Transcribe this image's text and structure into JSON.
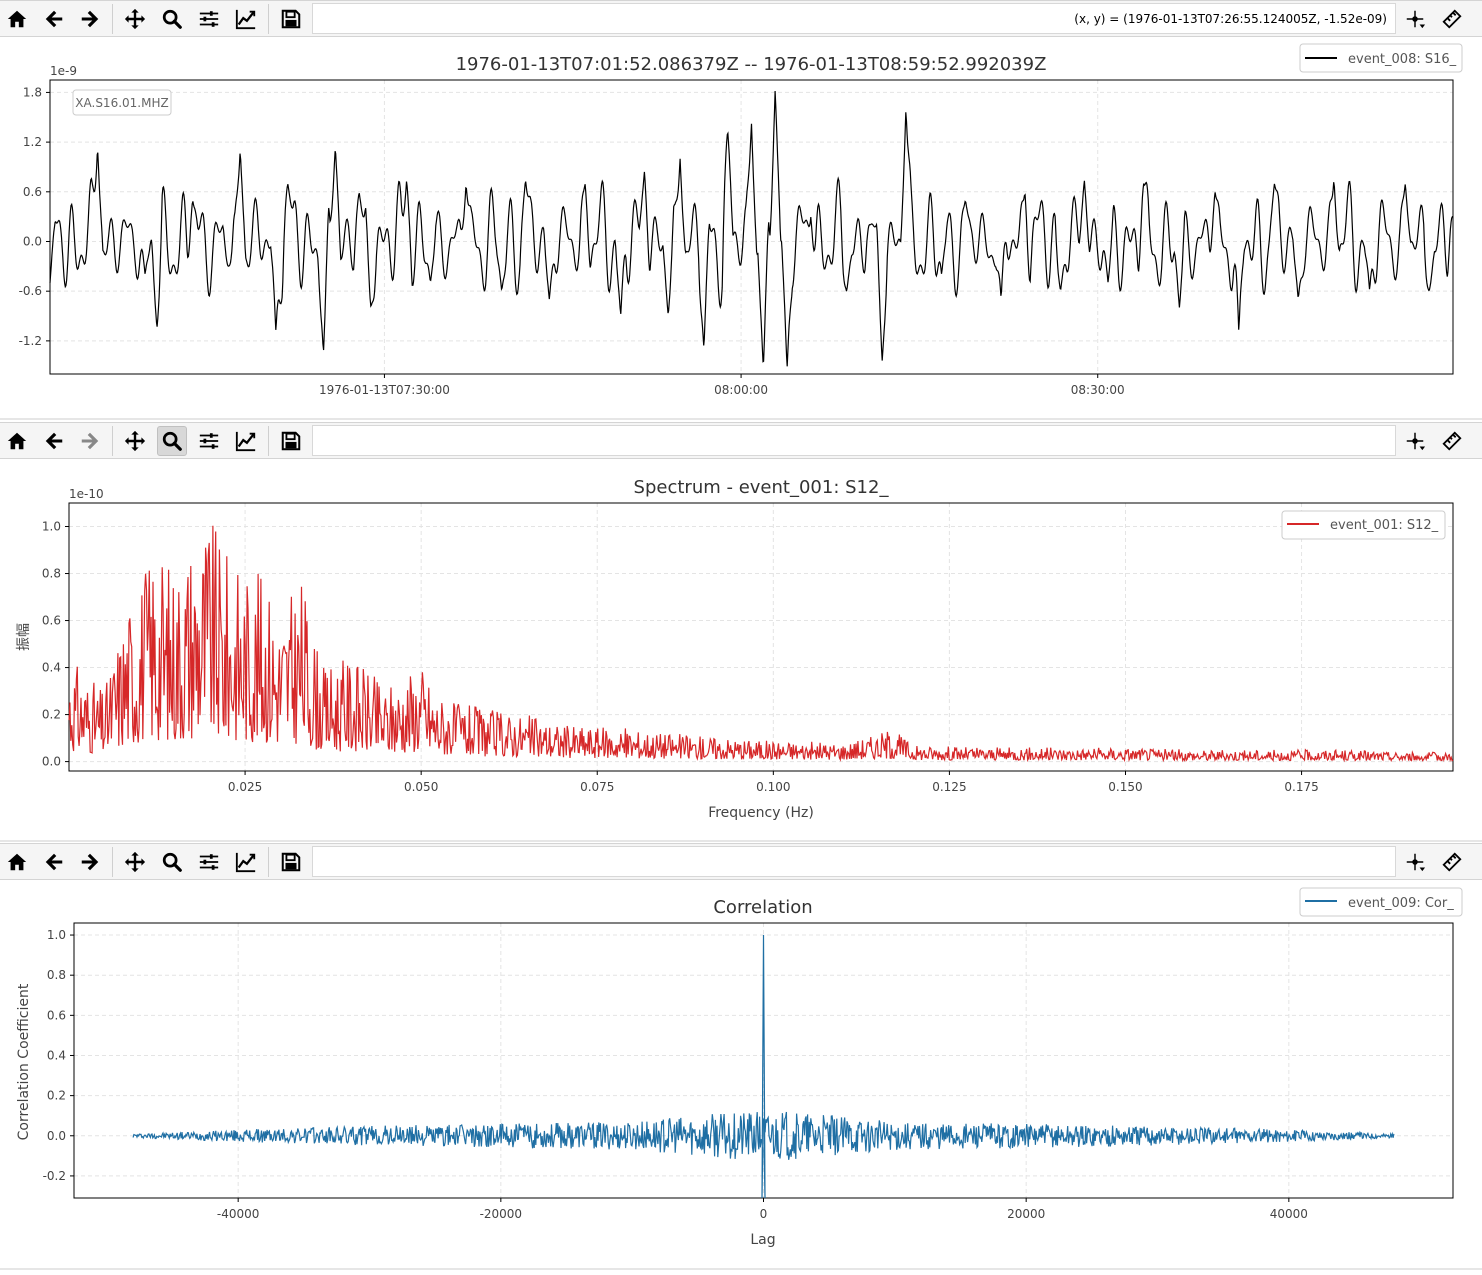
{
  "toolbar_icons": [
    "home-icon",
    "back-icon",
    "forward-icon",
    "pan-icon",
    "zoom-icon",
    "configure-subplots-icon",
    "edit-axes-icon",
    "save-icon",
    "crosshair-icon",
    "ruler-icon"
  ],
  "colors": {
    "waveform": "#000000",
    "spectrum": "#d62728",
    "correlation": "#1f6fa4",
    "toolbar_bg": "#f5f5f5"
  },
  "panel1": {
    "coords": "(x, y) = (1976-01-13T07:26:55.124005Z, -1.52e-09)",
    "title": "1976-01-13T07:01:52.086379Z -- 1976-01-13T08:59:52.992039Z",
    "offset_label": "1e-9",
    "station_label": "XA.S16.01.MHZ",
    "legend": "event_008: S16_"
  },
  "panel2": {
    "title": "Spectrum - event_001: S12_",
    "offset_label": "1e-10",
    "xlabel": "Frequency (Hz)",
    "ylabel": "振幅",
    "legend": "event_001: S12_"
  },
  "panel3": {
    "title": "Correlation",
    "xlabel": "Lag",
    "ylabel": "Correlation Coefficient",
    "legend": "event_009: Cor_"
  },
  "chart_data": [
    {
      "type": "line",
      "title": "1976-01-13T07:01:52.086379Z -- 1976-01-13T08:59:52.992039Z",
      "xlabel": "",
      "ylabel": "",
      "y_scale_factor": "1e-9",
      "x_range": [
        "1976-01-13T07:01:52.086379Z",
        "1976-01-13T08:59:52.992039Z"
      ],
      "ylim": [
        -1.6,
        1.95
      ],
      "xticks": [
        {
          "value": "1976-01-13T07:30:00",
          "label": "1976-01-13T07:30:00"
        },
        {
          "value": "1976-01-13T08:00:00",
          "label": "08:00:00"
        },
        {
          "value": "1976-01-13T08:30:00",
          "label": "08:30:00"
        }
      ],
      "yticks": [
        1.8,
        1.2,
        0.6,
        0.0,
        -0.6,
        -1.2
      ],
      "ytick_labels": [
        "1.8",
        "1.2",
        "0.6",
        "0.0",
        "-0.6",
        "-1.2"
      ],
      "grid": true,
      "legend_position": "top-right",
      "series": [
        {
          "name": "event_008: S16_",
          "description_points": {
            "x_minutes_from_start": [
              0,
              4,
              8,
              9,
              12,
              15,
              16,
              19,
              20,
              23,
              24,
              26,
              27,
              30,
              32,
              35,
              38,
              40,
              42,
              45,
              48,
              50,
              52,
              53,
              55,
              57,
              59,
              60,
              61,
              62,
              64,
              67,
              69,
              70,
              72,
              75,
              77,
              80,
              82,
              85,
              87,
              89,
              92,
              95,
              98,
              100,
              103,
              105,
              108,
              111,
              114,
              116,
              118
            ],
            "y": [
              -0.5,
              1.15,
              -0.4,
              -1.05,
              0.5,
              -0.3,
              1.1,
              -1.1,
              0.7,
              -1.35,
              1.15,
              0.6,
              -0.8,
              0.75,
              -0.5,
              0.7,
              -0.6,
              0.75,
              -0.7,
              0.7,
              -0.9,
              0.85,
              -0.9,
              1.0,
              -1.3,
              1.35,
              1.45,
              -1.55,
              1.85,
              -1.55,
              0.3,
              -0.6,
              0.2,
              -1.45,
              1.6,
              -0.4,
              0.5,
              -0.7,
              0.6,
              -0.6,
              0.75,
              -0.5,
              0.7,
              -0.8,
              0.6,
              -1.1,
              0.7,
              -0.7,
              0.75,
              -0.6,
              0.7,
              -0.6,
              0.3
            ]
          }
        }
      ]
    },
    {
      "type": "line",
      "title": "Spectrum - event_001: S12_",
      "xlabel": "Frequency (Hz)",
      "ylabel": "振幅",
      "y_scale_factor": "1e-10",
      "xlim": [
        0.0,
        0.1965
      ],
      "ylim": [
        -0.04,
        1.1
      ],
      "xticks": [
        0.025,
        0.05,
        0.075,
        0.1,
        0.125,
        0.15,
        0.175
      ],
      "xtick_labels": [
        "0.025",
        "0.050",
        "0.075",
        "0.100",
        "0.125",
        "0.150",
        "0.175"
      ],
      "yticks": [
        0.0,
        0.2,
        0.4,
        0.6,
        0.8,
        1.0
      ],
      "ytick_labels": [
        "0.0",
        "0.2",
        "0.4",
        "0.6",
        "0.8",
        "1.0"
      ],
      "grid": true,
      "legend_position": "top-right",
      "series": [
        {
          "name": "event_001: S12_",
          "envelope_points": {
            "x": [
              0.0,
              0.005,
              0.008,
              0.01,
              0.012,
              0.015,
              0.018,
              0.02,
              0.022,
              0.025,
              0.028,
              0.03,
              0.033,
              0.036,
              0.04,
              0.045,
              0.05,
              0.052,
              0.055,
              0.06,
              0.065,
              0.07,
              0.08,
              0.09,
              0.1,
              0.11,
              0.117,
              0.12,
              0.13,
              0.14,
              0.15,
              0.16,
              0.17,
              0.18,
              0.19,
              0.1965
            ],
            "y": [
              0.45,
              0.3,
              0.66,
              0.8,
              0.92,
              0.85,
              1.02,
              1.05,
              0.9,
              0.84,
              0.8,
              0.65,
              0.79,
              0.4,
              0.45,
              0.32,
              0.43,
              0.3,
              0.25,
              0.22,
              0.2,
              0.16,
              0.14,
              0.11,
              0.09,
              0.08,
              0.14,
              0.07,
              0.06,
              0.06,
              0.06,
              0.05,
              0.05,
              0.05,
              0.04,
              0.04
            ]
          }
        }
      ]
    },
    {
      "type": "line",
      "title": "Correlation",
      "xlabel": "Lag",
      "ylabel": "Correlation Coefficient",
      "xlim": [
        -52500,
        52500
      ],
      "ylim": [
        -0.31,
        1.06
      ],
      "xticks": [
        -40000,
        -20000,
        0,
        20000,
        40000
      ],
      "xtick_labels": [
        "-40000",
        "-20000",
        "0",
        "20000",
        "40000"
      ],
      "yticks": [
        -0.2,
        0.0,
        0.2,
        0.4,
        0.6,
        0.8,
        1.0
      ],
      "ytick_labels": [
        "-0.2",
        "0.0",
        "0.2",
        "0.4",
        "0.6",
        "0.8",
        "1.0"
      ],
      "grid": true,
      "legend_position": "top-right",
      "series": [
        {
          "name": "event_009: Cor_",
          "x_range": [
            -48000,
            48000
          ],
          "peak": {
            "x": 0,
            "y": 1.0
          },
          "trough": {
            "x": 0,
            "y": -0.31
          },
          "noise_envelope": {
            "x": [
              -48000,
              -40000,
              -30000,
              -20000,
              -10000,
              -2000,
              2000,
              10000,
              20000,
              30000,
              40000,
              48000
            ],
            "y": [
              0.01,
              0.03,
              0.05,
              0.06,
              0.07,
              0.12,
              0.12,
              0.07,
              0.06,
              0.05,
              0.03,
              0.01
            ]
          }
        }
      ]
    }
  ]
}
